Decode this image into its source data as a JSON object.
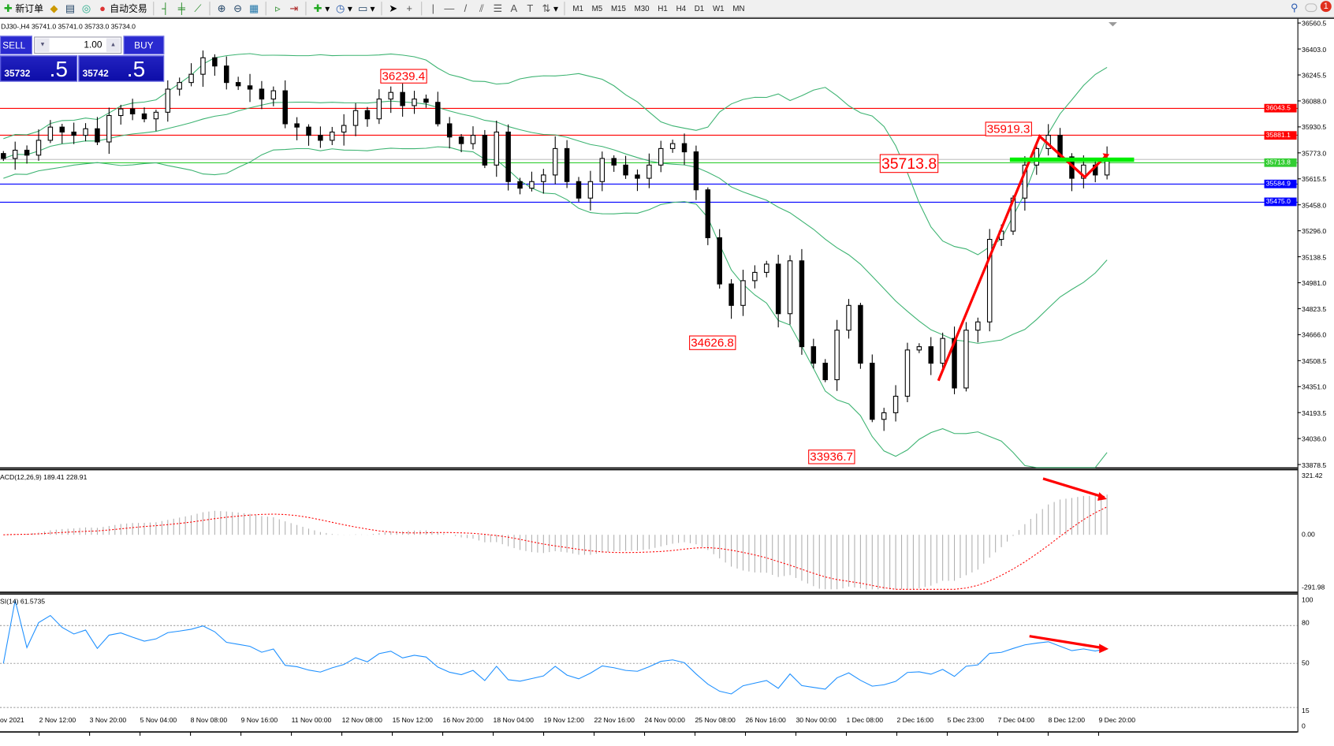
{
  "toolbar": {
    "new_order": "新订单",
    "auto_trading": "自动交易",
    "timeframes": [
      "M1",
      "M5",
      "M15",
      "M30",
      "H1",
      "H4",
      "D1",
      "W1",
      "MN"
    ],
    "notifications": "1"
  },
  "chart": {
    "ohlc_header": "DJ30-,H4  35741.0 35741.0 35733.0 35734.0",
    "one_click": {
      "sell": "SELL",
      "buy": "BUY",
      "lot": "1.00",
      "sell_big": "35732",
      "sell_small": ".5",
      "buy_big": "35742",
      "buy_small": ".5"
    },
    "price_axis": [
      "36560.5",
      "36403.0",
      "36245.5",
      "36088.0",
      "35930.5",
      "35773.0",
      "35615.5",
      "35458.0",
      "35296.0",
      "35138.5",
      "34981.0",
      "34823.5",
      "34666.0",
      "34508.5",
      "34351.0",
      "34193.5",
      "34036.0",
      "33878.5"
    ],
    "level_tags": [
      {
        "value": "36043.5",
        "color": "#ff0000"
      },
      {
        "value": "35881.1",
        "color": "#ff0000"
      },
      {
        "value": "35713.8",
        "color": "#32cd32"
      },
      {
        "value": "35584.9",
        "color": "#0000ff"
      },
      {
        "value": "35475.0",
        "color": "#0000ff"
      }
    ],
    "annotations": [
      "36239.4",
      "34626.8",
      "33936.7",
      "35919.3",
      "35713.8"
    ],
    "macd": {
      "title": "ACD(12,26,9) 189.41 228.91",
      "axis": [
        "321.42",
        "0.00",
        "-291.98"
      ]
    },
    "rsi": {
      "title": "SI(14) 61.5735",
      "axis": [
        "100",
        "80",
        "50",
        "15",
        "0"
      ]
    },
    "time_axis": [
      "ov 2021",
      "2 Nov 12:00",
      "3 Nov 20:00",
      "5 Nov 04:00",
      "8 Nov 08:00",
      "9 Nov 16:00",
      "11 Nov 00:00",
      "12 Nov 08:00",
      "15 Nov 12:00",
      "16 Nov 20:00",
      "18 Nov 04:00",
      "19 Nov 12:00",
      "22 Nov 16:00",
      "24 Nov 00:00",
      "25 Nov 08:00",
      "26 Nov 16:00",
      "30 Nov 00:00",
      "1 Dec 08:00",
      "2 Dec 16:00",
      "5 Dec 23:00",
      "7 Dec 04:00",
      "8 Dec 12:00",
      "9 Dec 20:00"
    ]
  },
  "chart_data": {
    "type": "candlestick",
    "symbol": "DJ30-",
    "timeframe": "H4",
    "ylim": [
      33878.5,
      36560.5
    ],
    "closes": [
      35740,
      35790,
      35760,
      35850,
      35930,
      35900,
      35880,
      35920,
      35840,
      36000,
      36040,
      36010,
      35980,
      36020,
      36160,
      36200,
      36250,
      36350,
      36300,
      36200,
      36180,
      36160,
      36100,
      36150,
      35950,
      35930,
      35880,
      35850,
      35900,
      35940,
      36030,
      35980,
      36100,
      36140,
      36060,
      36100,
      36080,
      35950,
      35870,
      35830,
      35880,
      35700,
      35900,
      35600,
      35560,
      35600,
      35640,
      35800,
      35600,
      35500,
      35600,
      35740,
      35700,
      35640,
      35620,
      35700,
      35800,
      35830,
      35780,
      35550,
      35260,
      34980,
      34850,
      35000,
      35050,
      35100,
      34800,
      35120,
      34600,
      34500,
      34400,
      34700,
      34850,
      34500,
      34160,
      34200,
      34300,
      34580,
      34600,
      34500,
      34650,
      34350,
      34700,
      34750,
      35250,
      35300,
      35500,
      35700,
      35800,
      35880,
      35750,
      35620,
      35700,
      35640,
      35740
    ],
    "horizontal_levels": [
      36043.5,
      35881.1,
      35713.8,
      35584.9,
      35475.0
    ],
    "bid": 35734.0,
    "colors": {
      "bands": "#3cb371",
      "macd_signal": "#ff0000",
      "rsi": "#1e90ff",
      "trend": "#ff0000",
      "support_bar": "#00ee00"
    },
    "macd_range": [
      -291.98,
      321.42
    ],
    "rsi_levels": [
      80,
      50,
      15
    ]
  }
}
